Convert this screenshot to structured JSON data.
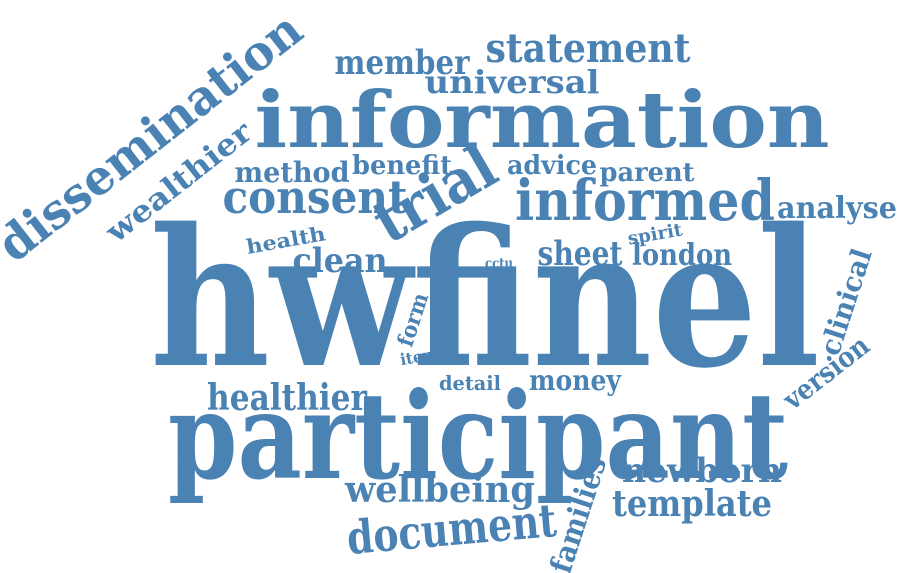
{
  "cloud": {
    "color": "#4a82b4",
    "background": "#ffffff",
    "words": [
      {
        "text": "hwfinel"
      },
      {
        "text": "participant"
      },
      {
        "text": "information"
      },
      {
        "text": "trial"
      },
      {
        "text": "informed"
      },
      {
        "text": "consent"
      },
      {
        "text": "dissemination"
      },
      {
        "text": "statement"
      },
      {
        "text": "member"
      },
      {
        "text": "universal"
      },
      {
        "text": "wealthier"
      },
      {
        "text": "method"
      },
      {
        "text": "benefit"
      },
      {
        "text": "advice"
      },
      {
        "text": "parent"
      },
      {
        "text": "analyse"
      },
      {
        "text": "health"
      },
      {
        "text": "clean"
      },
      {
        "text": "cctu"
      },
      {
        "text": "sheet"
      },
      {
        "text": "london"
      },
      {
        "text": "spirit"
      },
      {
        "text": "clinical"
      },
      {
        "text": "form"
      },
      {
        "text": "item"
      },
      {
        "text": "detail"
      },
      {
        "text": "money"
      },
      {
        "text": "healthier"
      },
      {
        "text": "version"
      },
      {
        "text": "newborn"
      },
      {
        "text": "wellbeing"
      },
      {
        "text": "families"
      },
      {
        "text": "template"
      },
      {
        "text": "document"
      }
    ]
  }
}
